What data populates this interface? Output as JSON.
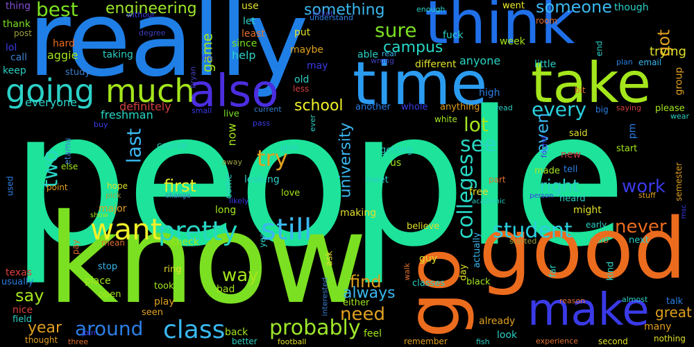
{
  "cloud": {
    "background": "#000000",
    "words": {
      "people": {
        "text": "people",
        "color": "#1de39b"
      },
      "really": {
        "text": "really",
        "color": "#1f7fe6"
      },
      "know": {
        "text": "know",
        "color": "#7be022"
      },
      "good": {
        "text": "good",
        "color": "#ec6c1e"
      },
      "time": {
        "text": "time",
        "color": "#2b9bf0"
      },
      "think": {
        "text": "think",
        "color": "#1f6fe8"
      },
      "take": {
        "text": "take",
        "color": "#a4e61c"
      },
      "make": {
        "text": "make",
        "color": "#3a3ae8"
      },
      "go": {
        "text": "go",
        "color": "#ec6c1e"
      },
      "also": {
        "text": "also",
        "color": "#4a2ee0"
      },
      "going": {
        "text": "going",
        "color": "#2bd0c6"
      },
      "much": {
        "text": "much",
        "color": "#a4e61c"
      },
      "want": {
        "text": "want",
        "color": "#f0f02a"
      },
      "still": {
        "text": "still",
        "color": "#3ab8f0"
      },
      "pretty": {
        "text": "pretty",
        "color": "#27d7c4"
      },
      "class": {
        "text": "class",
        "color": "#3ab8f0"
      },
      "probably": {
        "text": "probably",
        "color": "#9ee72a"
      },
      "student": {
        "text": "student",
        "color": "#2bd0e0"
      },
      "around": {
        "text": "around",
        "color": "#2b7fe6"
      },
      "colleges": {
        "text": "colleges",
        "color": "#27d7c4"
      },
      "every": {
        "text": "every",
        "color": "#2bd0e0"
      },
      "see": {
        "text": "see",
        "color": "#27d7c4"
      },
      "try": {
        "text": "try",
        "color": "#e0a020"
      },
      "two": {
        "text": "two",
        "color": "#27d7c4"
      },
      "best": {
        "text": "best",
        "color": "#7be022"
      },
      "engineering": {
        "text": "engineering",
        "color": "#9ee72a"
      },
      "sure": {
        "text": "sure",
        "color": "#7be022"
      },
      "something": {
        "text": "something",
        "color": "#3ab8f0"
      },
      "someone": {
        "text": "someone",
        "color": "#3ab8f0"
      },
      "got": {
        "text": "got",
        "color": "#e0a020"
      },
      "lot": {
        "text": "lot",
        "color": "#a4e61c"
      },
      "last": {
        "text": "last",
        "color": "#3ab8f0"
      },
      "first": {
        "text": "first",
        "color": "#f0f02a"
      },
      "work": {
        "text": "work",
        "color": "#3a3ae8"
      },
      "right": {
        "text": "right",
        "color": "#2bd0c6"
      },
      "never": {
        "text": "never",
        "color": "#ec6c1e"
      },
      "need": {
        "text": "need",
        "color": "#e0a020"
      },
      "find": {
        "text": "find",
        "color": "#e0a020"
      },
      "way": {
        "text": "way",
        "color": "#a4e61c"
      },
      "always": {
        "text": "always",
        "color": "#3ab8f0"
      },
      "say": {
        "text": "say",
        "color": "#a4e61c"
      },
      "year": {
        "text": "year",
        "color": "#e0a020"
      },
      "great": {
        "text": "great",
        "color": "#e0a020"
      },
      "school": {
        "text": "school",
        "color": "#f0f02a"
      },
      "even": {
        "text": "even",
        "color": "#3ab8f0"
      },
      "university": {
        "text": "university",
        "color": "#3ab8f0"
      },
      "campus": {
        "text": "campus",
        "color": "#27d7c4"
      },
      "game": {
        "text": "game",
        "color": "#a4e61c"
      },
      "trying": {
        "text": "trying",
        "color": "#e0e02a"
      },
      "everyone": {
        "text": "everyone",
        "color": "#2bd0c6"
      },
      "definitely": {
        "text": "definitely",
        "color": "#d04040"
      },
      "freshman": {
        "text": "freshman",
        "color": "#27d7c4"
      },
      "anyone": {
        "text": "anyone",
        "color": "#27d7c4"
      },
      "help": {
        "text": "help",
        "color": "#2bd0c6"
      },
      "hard": {
        "text": "hard",
        "color": "#ec6c1e"
      },
      "aggie": {
        "text": "aggie",
        "color": "#a4e61c"
      },
      "taking": {
        "text": "taking",
        "color": "#2bd0c6"
      },
      "thing": {
        "text": "thing",
        "color": "#8050d0"
      },
      "thank": {
        "text": "thank",
        "color": "#7be022"
      },
      "post": {
        "text": "post",
        "color": "#a0a040"
      },
      "lol": {
        "text": "lol",
        "color": "#3a3ae8"
      },
      "call": {
        "text": "call",
        "color": "#3a80d0"
      },
      "keep": {
        "text": "keep",
        "color": "#2bd0c6"
      },
      "study": {
        "text": "study",
        "color": "#3a80d0"
      },
      "without": {
        "text": "without",
        "color": "#3a3ae8"
      },
      "degree": {
        "text": "degree",
        "color": "#4040c0"
      },
      "use": {
        "text": "use",
        "color": "#e0e02a"
      },
      "let": {
        "text": "let",
        "color": "#2bd0c6"
      },
      "least": {
        "text": "least",
        "color": "#e07030"
      },
      "since": {
        "text": "since",
        "color": "#7be022"
      },
      "ticket": {
        "text": "ticket",
        "color": "#4040c0"
      },
      "understand": {
        "text": "understand",
        "color": "#2b7fe6"
      },
      "put": {
        "text": "put",
        "color": "#e0e02a"
      },
      "maybe": {
        "text": "maybe",
        "color": "#e0a020"
      },
      "fuck": {
        "text": "fuck",
        "color": "#2bd0c6"
      },
      "able": {
        "text": "able",
        "color": "#2bd0c6"
      },
      "real": {
        "text": "real",
        "color": "#3ab8f0"
      },
      "wrong": {
        "text": "wrong",
        "color": "#4040c0"
      },
      "may": {
        "text": "may",
        "color": "#3a3ae8"
      },
      "old": {
        "text": "old",
        "color": "#2bd0c6"
      },
      "less": {
        "text": "less",
        "color": "#d04040"
      },
      "different": {
        "text": "different",
        "color": "#e0e02a"
      },
      "went": {
        "text": "went",
        "color": "#f0f02a"
      },
      "enough": {
        "text": "enough",
        "color": "#2bd0c6"
      },
      "room": {
        "text": "room",
        "color": "#e07030"
      },
      "though": {
        "text": "though",
        "color": "#2bd0c6"
      },
      "week": {
        "text": "week",
        "color": "#a4e61c"
      },
      "end": {
        "text": "end",
        "color": "#2bd0c6"
      },
      "little": {
        "text": "little",
        "color": "#2bd0c6"
      },
      "group": {
        "text": "group",
        "color": "#e0a020"
      },
      "bit": {
        "text": "bit",
        "color": "#e07030"
      },
      "high": {
        "text": "high",
        "color": "#2b7fe6"
      },
      "plan": {
        "text": "plan",
        "color": "#2b7fe6"
      },
      "email": {
        "text": "email",
        "color": "#3ab8f0"
      },
      "bryan": {
        "text": "bryan",
        "color": "#4040c0"
      },
      "life": {
        "text": "life",
        "color": "#3a3ae8"
      },
      "another": {
        "text": "another",
        "color": "#2b7fe6"
      },
      "whole": {
        "text": "whole",
        "color": "#3a3ae8"
      },
      "anything": {
        "text": "anything",
        "color": "#e0a020"
      },
      "current": {
        "text": "current",
        "color": "#3a80d0"
      },
      "small": {
        "text": "small",
        "color": "#3a3ae8"
      },
      "read": {
        "text": "read",
        "color": "#2bd0c6"
      },
      "big": {
        "text": "big",
        "color": "#2b7fe6"
      },
      "saying": {
        "text": "saying",
        "color": "#d04040"
      },
      "please": {
        "text": "please",
        "color": "#a4e61c"
      },
      "wear": {
        "text": "wear",
        "color": "#2bd0c6"
      },
      "live": {
        "text": "live",
        "color": "#7be022"
      },
      "white": {
        "text": "white",
        "color": "#a4e61c"
      },
      "buy": {
        "text": "buy",
        "color": "#3a3ae8"
      },
      "pass": {
        "text": "pass",
        "color": "#3a3ae8"
      },
      "ever": {
        "text": "ever",
        "color": "#2bd0c6"
      },
      "now": {
        "text": "now",
        "color": "#a4e61c"
      },
      "etamu": {
        "text": "etamu",
        "color": "#3a80d0"
      },
      "else": {
        "text": "else",
        "color": "#a4e61c"
      },
      "course": {
        "text": "course",
        "color": "#2bd0c6"
      },
      "give": {
        "text": "give",
        "color": "#2bd0c6"
      },
      "away": {
        "text": "away",
        "color": "#a0a040"
      },
      "getting": {
        "text": "getting",
        "color": "#2bd0c6"
      },
      "us": {
        "text": "us",
        "color": "#a4e61c"
      },
      "said": {
        "text": "said",
        "color": "#e0e02a"
      },
      "pm": {
        "text": "pm",
        "color": "#2b7fe6"
      },
      "found": {
        "text": "found",
        "color": "#3a3ae8"
      },
      "start": {
        "text": "start",
        "color": "#a4e61c"
      },
      "new": {
        "text": "new",
        "color": "#d04040"
      },
      "tell": {
        "text": "tell",
        "color": "#2b7fe6"
      },
      "made": {
        "text": "made",
        "color": "#a4e61c"
      },
      "meet": {
        "text": "meet",
        "color": "#2bd0c6"
      },
      "semester": {
        "text": "semester",
        "color": "#e0a020"
      },
      "point": {
        "text": "point",
        "color": "#e0a020"
      },
      "hope": {
        "text": "hope",
        "color": "#e0e02a"
      },
      "pick": {
        "text": "pick",
        "color": "#a0a040"
      },
      "change": {
        "text": "change",
        "color": "#3a80d0"
      },
      "likely": {
        "text": "likely",
        "color": "#3a3ae8"
      },
      "come": {
        "text": "come",
        "color": "#2bd0c6"
      },
      "looking": {
        "text": "looking",
        "color": "#2bd0c6"
      },
      "love": {
        "text": "love",
        "color": "#a4e61c"
      },
      "part": {
        "text": "part",
        "color": "#e07030"
      },
      "free": {
        "text": "free",
        "color": "#e0e02a"
      },
      "heard": {
        "text": "heard",
        "color": "#2bd0c6"
      },
      "might": {
        "text": "might",
        "color": "#e0e02a"
      },
      "stuff": {
        "text": "stuff",
        "color": "#e0a020"
      },
      "academic": {
        "text": "academic",
        "color": "#2bd0c6"
      },
      "person": {
        "text": "person",
        "color": "#3a3ae8"
      },
      "used": {
        "text": "used",
        "color": "#2b7fe6"
      },
      "show": {
        "text": "show",
        "color": "#a4e61c"
      },
      "major": {
        "text": "major",
        "color": "#e0a020"
      },
      "long": {
        "text": "long",
        "color": "#a4e61c"
      },
      "making": {
        "text": "making",
        "color": "#e0e02a"
      },
      "early": {
        "text": "early",
        "color": "#2bd0c6"
      },
      "msc": {
        "text": "msc",
        "color": "#3a3ae8"
      },
      "mean": {
        "text": "mean",
        "color": "#e07030"
      },
      "pay": {
        "text": "pay",
        "color": "#e07030"
      },
      "check": {
        "text": "check",
        "color": "#a4e61c"
      },
      "believe": {
        "text": "believe",
        "color": "#e0e02a"
      },
      "club": {
        "text": "club",
        "color": "#e07030"
      },
      "next": {
        "text": "next",
        "color": "#2bd0c6"
      },
      "started": {
        "text": "started",
        "color": "#a0a040"
      },
      "yeah": {
        "text": "yeah",
        "color": "#2bd0c6"
      },
      "ask": {
        "text": "ask",
        "color": "#e0e02a"
      },
      "actually": {
        "text": "actually",
        "color": "#3ab8f0"
      },
      "guy": {
        "text": "guy",
        "color": "#e0e02a"
      },
      "day": {
        "text": "day",
        "color": "#e0e02a"
      },
      "walk": {
        "text": "walk",
        "color": "#e07030"
      },
      "kind": {
        "text": "kind",
        "color": "#2bd0c6"
      },
      "far": {
        "text": "far",
        "color": "#2bd0c6"
      },
      "texas": {
        "text": "texas",
        "color": "#e04040"
      },
      "usually": {
        "text": "usually",
        "color": "#2b7fe6"
      },
      "stop": {
        "text": "stop",
        "color": "#3ab8f0"
      },
      "ring": {
        "text": "ring",
        "color": "#e0e02a"
      },
      "place": {
        "text": "place",
        "color": "#a4e61c"
      },
      "took": {
        "text": "took",
        "color": "#a4e61c"
      },
      "bad": {
        "text": "bad",
        "color": "#a4e61c"
      },
      "classes": {
        "text": "classes",
        "color": "#2bd0c6"
      },
      "black": {
        "text": "black",
        "color": "#a4e61c"
      },
      "open": {
        "text": "open",
        "color": "#a4e61c"
      },
      "nice": {
        "text": "nice",
        "color": "#e04040"
      },
      "field": {
        "text": "field",
        "color": "#2bd0c6"
      },
      "play": {
        "text": "play",
        "color": "#e0a020"
      },
      "seen": {
        "text": "seen",
        "color": "#e0a020"
      },
      "interested": {
        "text": "interested",
        "color": "#3a80d0"
      },
      "either": {
        "text": "either",
        "color": "#a4e61c"
      },
      "back": {
        "text": "back",
        "color": "#a4e61c"
      },
      "feel": {
        "text": "feel",
        "color": "#a4e61c"
      },
      "already": {
        "text": "already",
        "color": "#e0a020"
      },
      "look": {
        "text": "look",
        "color": "#2bd0c6"
      },
      "reason": {
        "text": "reason",
        "color": "#e07030"
      },
      "almost": {
        "text": "almost",
        "color": "#2bd0c6"
      },
      "talk": {
        "text": "talk",
        "color": "#2b7fe6"
      },
      "many": {
        "text": "many",
        "color": "#e0a020"
      },
      "join": {
        "text": "join",
        "color": "#3a3ae8"
      },
      "thought": {
        "text": "thought",
        "color": "#e0a020"
      },
      "three": {
        "text": "three",
        "color": "#e07030"
      },
      "better": {
        "text": "better",
        "color": "#2bd0c6"
      },
      "football": {
        "text": "football",
        "color": "#e0e02a"
      },
      "remember": {
        "text": "remember",
        "color": "#e0a020"
      },
      "fish": {
        "text": "fish",
        "color": "#2bd0c6"
      },
      "experience": {
        "text": "experience",
        "color": "#e07030"
      },
      "second": {
        "text": "second",
        "color": "#e0e02a"
      },
      "nothing": {
        "text": "nothing",
        "color": "#e0e02a"
      }
    }
  }
}
